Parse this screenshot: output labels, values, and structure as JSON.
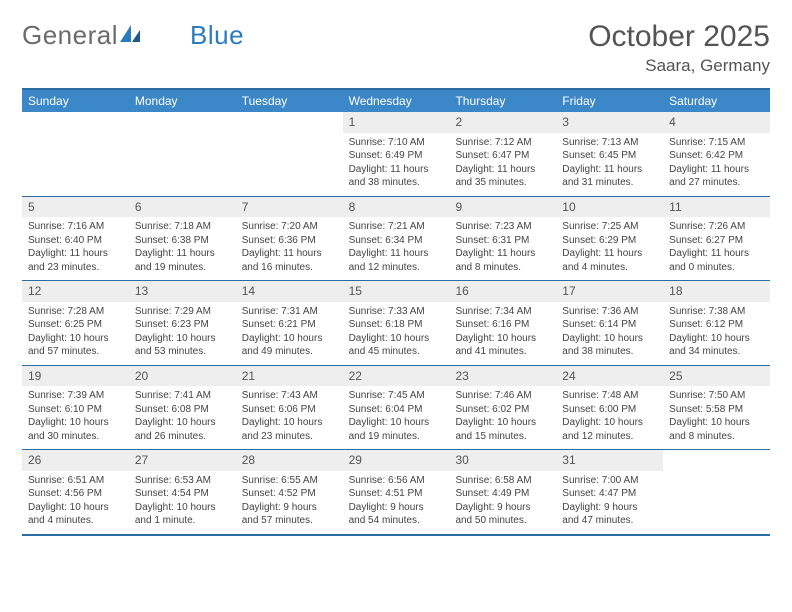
{
  "logo": {
    "text_a": "General",
    "text_b": "Blue"
  },
  "title": "October 2025",
  "location": "Saara, Germany",
  "colors": {
    "header_bg": "#3b87c8",
    "border": "#2b6ca3",
    "daynum_bg": "#eeeeee",
    "text": "#545454"
  },
  "weekdays": [
    "Sunday",
    "Monday",
    "Tuesday",
    "Wednesday",
    "Thursday",
    "Friday",
    "Saturday"
  ],
  "weeks": [
    [
      {
        "empty": true
      },
      {
        "empty": true
      },
      {
        "empty": true
      },
      {
        "day": "1",
        "sunrise": "Sunrise: 7:10 AM",
        "sunset": "Sunset: 6:49 PM",
        "daylight1": "Daylight: 11 hours",
        "daylight2": "and 38 minutes."
      },
      {
        "day": "2",
        "sunrise": "Sunrise: 7:12 AM",
        "sunset": "Sunset: 6:47 PM",
        "daylight1": "Daylight: 11 hours",
        "daylight2": "and 35 minutes."
      },
      {
        "day": "3",
        "sunrise": "Sunrise: 7:13 AM",
        "sunset": "Sunset: 6:45 PM",
        "daylight1": "Daylight: 11 hours",
        "daylight2": "and 31 minutes."
      },
      {
        "day": "4",
        "sunrise": "Sunrise: 7:15 AM",
        "sunset": "Sunset: 6:42 PM",
        "daylight1": "Daylight: 11 hours",
        "daylight2": "and 27 minutes."
      }
    ],
    [
      {
        "day": "5",
        "sunrise": "Sunrise: 7:16 AM",
        "sunset": "Sunset: 6:40 PM",
        "daylight1": "Daylight: 11 hours",
        "daylight2": "and 23 minutes."
      },
      {
        "day": "6",
        "sunrise": "Sunrise: 7:18 AM",
        "sunset": "Sunset: 6:38 PM",
        "daylight1": "Daylight: 11 hours",
        "daylight2": "and 19 minutes."
      },
      {
        "day": "7",
        "sunrise": "Sunrise: 7:20 AM",
        "sunset": "Sunset: 6:36 PM",
        "daylight1": "Daylight: 11 hours",
        "daylight2": "and 16 minutes."
      },
      {
        "day": "8",
        "sunrise": "Sunrise: 7:21 AM",
        "sunset": "Sunset: 6:34 PM",
        "daylight1": "Daylight: 11 hours",
        "daylight2": "and 12 minutes."
      },
      {
        "day": "9",
        "sunrise": "Sunrise: 7:23 AM",
        "sunset": "Sunset: 6:31 PM",
        "daylight1": "Daylight: 11 hours",
        "daylight2": "and 8 minutes."
      },
      {
        "day": "10",
        "sunrise": "Sunrise: 7:25 AM",
        "sunset": "Sunset: 6:29 PM",
        "daylight1": "Daylight: 11 hours",
        "daylight2": "and 4 minutes."
      },
      {
        "day": "11",
        "sunrise": "Sunrise: 7:26 AM",
        "sunset": "Sunset: 6:27 PM",
        "daylight1": "Daylight: 11 hours",
        "daylight2": "and 0 minutes."
      }
    ],
    [
      {
        "day": "12",
        "sunrise": "Sunrise: 7:28 AM",
        "sunset": "Sunset: 6:25 PM",
        "daylight1": "Daylight: 10 hours",
        "daylight2": "and 57 minutes."
      },
      {
        "day": "13",
        "sunrise": "Sunrise: 7:29 AM",
        "sunset": "Sunset: 6:23 PM",
        "daylight1": "Daylight: 10 hours",
        "daylight2": "and 53 minutes."
      },
      {
        "day": "14",
        "sunrise": "Sunrise: 7:31 AM",
        "sunset": "Sunset: 6:21 PM",
        "daylight1": "Daylight: 10 hours",
        "daylight2": "and 49 minutes."
      },
      {
        "day": "15",
        "sunrise": "Sunrise: 7:33 AM",
        "sunset": "Sunset: 6:18 PM",
        "daylight1": "Daylight: 10 hours",
        "daylight2": "and 45 minutes."
      },
      {
        "day": "16",
        "sunrise": "Sunrise: 7:34 AM",
        "sunset": "Sunset: 6:16 PM",
        "daylight1": "Daylight: 10 hours",
        "daylight2": "and 41 minutes."
      },
      {
        "day": "17",
        "sunrise": "Sunrise: 7:36 AM",
        "sunset": "Sunset: 6:14 PM",
        "daylight1": "Daylight: 10 hours",
        "daylight2": "and 38 minutes."
      },
      {
        "day": "18",
        "sunrise": "Sunrise: 7:38 AM",
        "sunset": "Sunset: 6:12 PM",
        "daylight1": "Daylight: 10 hours",
        "daylight2": "and 34 minutes."
      }
    ],
    [
      {
        "day": "19",
        "sunrise": "Sunrise: 7:39 AM",
        "sunset": "Sunset: 6:10 PM",
        "daylight1": "Daylight: 10 hours",
        "daylight2": "and 30 minutes."
      },
      {
        "day": "20",
        "sunrise": "Sunrise: 7:41 AM",
        "sunset": "Sunset: 6:08 PM",
        "daylight1": "Daylight: 10 hours",
        "daylight2": "and 26 minutes."
      },
      {
        "day": "21",
        "sunrise": "Sunrise: 7:43 AM",
        "sunset": "Sunset: 6:06 PM",
        "daylight1": "Daylight: 10 hours",
        "daylight2": "and 23 minutes."
      },
      {
        "day": "22",
        "sunrise": "Sunrise: 7:45 AM",
        "sunset": "Sunset: 6:04 PM",
        "daylight1": "Daylight: 10 hours",
        "daylight2": "and 19 minutes."
      },
      {
        "day": "23",
        "sunrise": "Sunrise: 7:46 AM",
        "sunset": "Sunset: 6:02 PM",
        "daylight1": "Daylight: 10 hours",
        "daylight2": "and 15 minutes."
      },
      {
        "day": "24",
        "sunrise": "Sunrise: 7:48 AM",
        "sunset": "Sunset: 6:00 PM",
        "daylight1": "Daylight: 10 hours",
        "daylight2": "and 12 minutes."
      },
      {
        "day": "25",
        "sunrise": "Sunrise: 7:50 AM",
        "sunset": "Sunset: 5:58 PM",
        "daylight1": "Daylight: 10 hours",
        "daylight2": "and 8 minutes."
      }
    ],
    [
      {
        "day": "26",
        "sunrise": "Sunrise: 6:51 AM",
        "sunset": "Sunset: 4:56 PM",
        "daylight1": "Daylight: 10 hours",
        "daylight2": "and 4 minutes."
      },
      {
        "day": "27",
        "sunrise": "Sunrise: 6:53 AM",
        "sunset": "Sunset: 4:54 PM",
        "daylight1": "Daylight: 10 hours",
        "daylight2": "and 1 minute."
      },
      {
        "day": "28",
        "sunrise": "Sunrise: 6:55 AM",
        "sunset": "Sunset: 4:52 PM",
        "daylight1": "Daylight: 9 hours",
        "daylight2": "and 57 minutes."
      },
      {
        "day": "29",
        "sunrise": "Sunrise: 6:56 AM",
        "sunset": "Sunset: 4:51 PM",
        "daylight1": "Daylight: 9 hours",
        "daylight2": "and 54 minutes."
      },
      {
        "day": "30",
        "sunrise": "Sunrise: 6:58 AM",
        "sunset": "Sunset: 4:49 PM",
        "daylight1": "Daylight: 9 hours",
        "daylight2": "and 50 minutes."
      },
      {
        "day": "31",
        "sunrise": "Sunrise: 7:00 AM",
        "sunset": "Sunset: 4:47 PM",
        "daylight1": "Daylight: 9 hours",
        "daylight2": "and 47 minutes."
      },
      {
        "trailing_empty": true
      }
    ]
  ]
}
